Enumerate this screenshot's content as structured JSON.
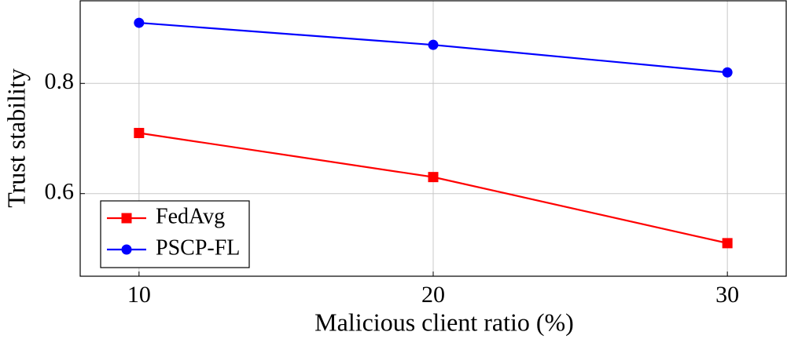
{
  "chart_data": {
    "type": "line",
    "x": [
      10,
      20,
      30
    ],
    "series": [
      {
        "name": "FedAvg",
        "color": "#ff0000",
        "marker": "square",
        "values": [
          0.71,
          0.63,
          0.51
        ]
      },
      {
        "name": "PSCP-FL",
        "color": "#0000ff",
        "marker": "circle",
        "values": [
          0.91,
          0.87,
          0.82
        ]
      }
    ],
    "xlabel": "Malicious client ratio (%)",
    "ylabel": "Trust stability",
    "xlim": [
      8,
      32
    ],
    "xticks": [
      10,
      20,
      30
    ],
    "ylim": [
      0.45,
      0.95
    ],
    "yticks": [
      0.6,
      0.8
    ],
    "grid": true,
    "legend": "lower left"
  }
}
